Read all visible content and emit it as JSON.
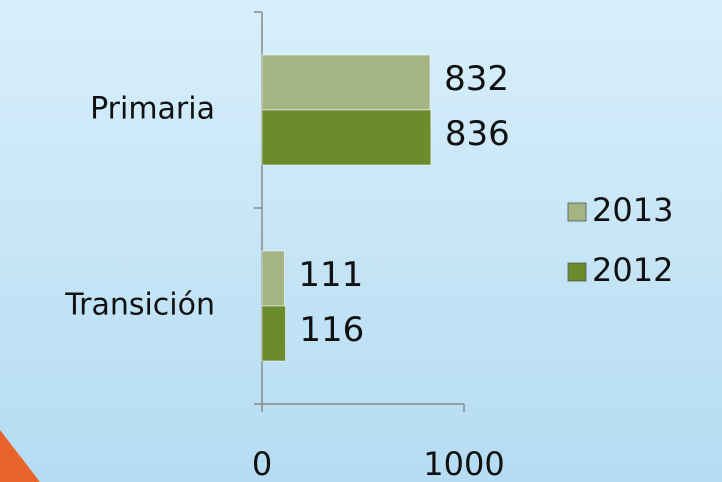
{
  "chart_data": {
    "type": "hbar",
    "categories": [
      "Primaria",
      "Transición"
    ],
    "series": [
      {
        "name": "2013",
        "color": "#a4b483",
        "values": [
          832,
          111
        ]
      },
      {
        "name": "2012",
        "color": "#6b8c2c",
        "values": [
          836,
          116
        ]
      }
    ],
    "xlim": [
      0,
      1000
    ],
    "xticks": [
      0,
      1000
    ],
    "legend": "right"
  }
}
